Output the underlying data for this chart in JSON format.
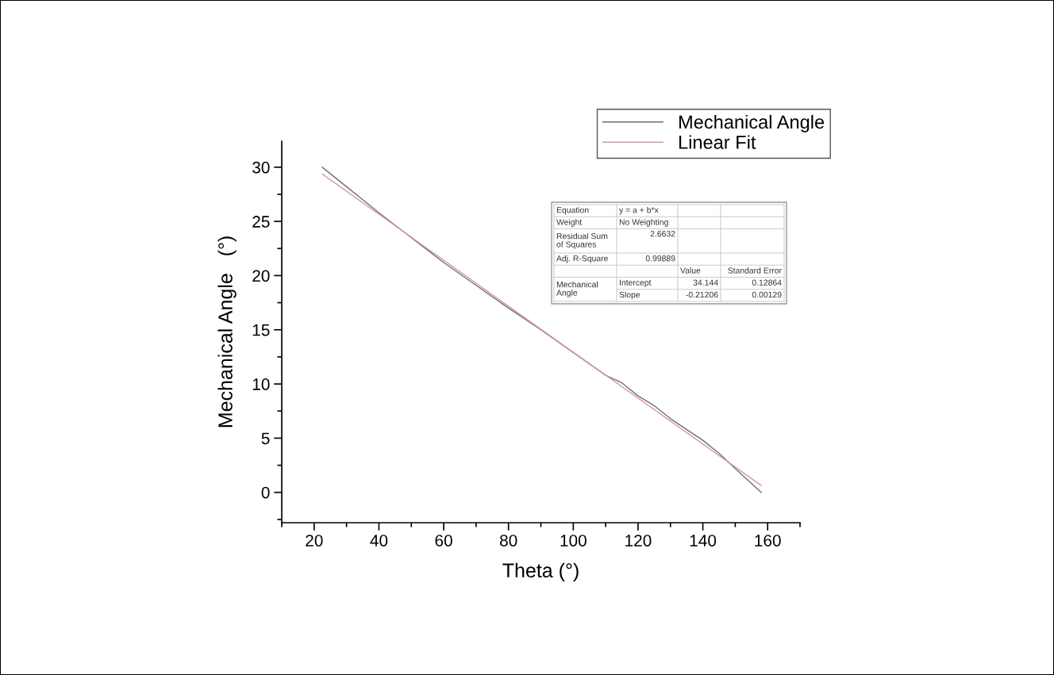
{
  "chart_data": {
    "type": "line",
    "xlabel": "Theta (°)",
    "ylabel": "Mechanical Angle   (°)",
    "xlim": [
      10,
      170
    ],
    "ylim": [
      -2.8,
      32.4
    ],
    "xticks": [
      {
        "value": 10,
        "label": null
      },
      20,
      {
        "value": 30,
        "label": null
      },
      40,
      {
        "value": 50,
        "label": null
      },
      60,
      {
        "value": 70,
        "label": null
      },
      80,
      {
        "value": 90,
        "label": null
      },
      100,
      {
        "value": 110,
        "label": null
      },
      120,
      {
        "value": 130,
        "label": null
      },
      140,
      {
        "value": 150,
        "label": null
      },
      160,
      {
        "value": 170,
        "label": null
      }
    ],
    "yticks": [
      {
        "value": -2.5,
        "label": null
      },
      0,
      {
        "value": 2.5,
        "label": null
      },
      5,
      {
        "value": 7.5,
        "label": null
      },
      10,
      {
        "value": 12.5,
        "label": null
      },
      15,
      {
        "value": 17.5,
        "label": null
      },
      20,
      {
        "value": 22.5,
        "label": null
      },
      25,
      {
        "value": 27.5,
        "label": null
      },
      30
    ],
    "grid": false,
    "legend": "top right",
    "marker": "none",
    "line_style": "solid",
    "series": [
      {
        "name": "Mechanical Angle",
        "color": "#6e6e78",
        "x": [
          22.5,
          30,
          35,
          40,
          50,
          60,
          70,
          80,
          90,
          100,
          110,
          115,
          120,
          125,
          130,
          140,
          145,
          150,
          158
        ],
        "values": [
          30.0,
          28.2,
          27.0,
          25.8,
          23.5,
          21.2,
          19.1,
          17.0,
          15.0,
          12.9,
          10.8,
          10.1,
          8.9,
          8.0,
          6.8,
          4.8,
          3.6,
          2.2,
          0.0
        ]
      },
      {
        "name": "Linear Fit",
        "color": "#d49a9a",
        "x": [
          22.5,
          158
        ],
        "values": [
          29.37,
          0.64
        ]
      }
    ],
    "annotations": [
      "Equation",
      "y = a + b*x",
      "Weight",
      "No Weighting",
      "Residual Sum\nof Squares",
      "2.6632",
      "Adj. R-Square",
      "0.99889",
      "Value",
      "Standard Error",
      "Mechanical\nAngle",
      "Intercept",
      "34.144",
      "0.12864",
      "Slope",
      "-0.21206",
      "0.00129"
    ]
  }
}
